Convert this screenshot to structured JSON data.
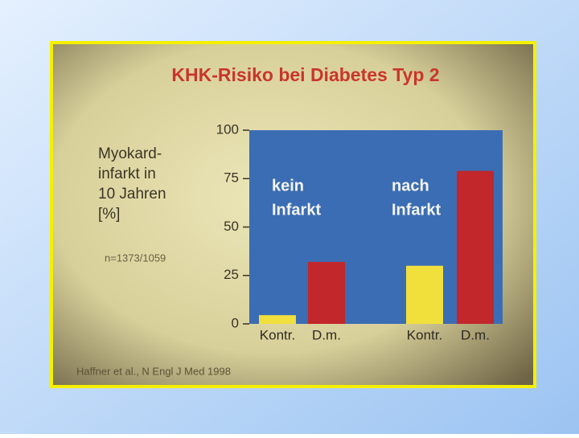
{
  "chart_data": {
    "type": "bar",
    "title": "KHK-Risiko bei Diabetes Typ 2",
    "ylabel_lines": [
      "Myokard-",
      "infarkt in",
      "10 Jahren",
      "[%]"
    ],
    "annotation": "n=1373/1059",
    "source": "Haffner et al., N Engl J Med 1998",
    "groups": [
      [
        "kein",
        "Infarkt"
      ],
      [
        "nach",
        "Infarkt"
      ]
    ],
    "categories": [
      "Kontr.",
      "D.m.",
      "Kontr.",
      "D.m."
    ],
    "values": [
      4.5,
      32,
      30,
      79
    ],
    "colors": [
      "#f1df3c",
      "#c1272b",
      "#f1df3c",
      "#c1272b"
    ],
    "plot_color": "#3b6db4",
    "ylim": [
      0,
      100
    ],
    "yticks": [
      0,
      25,
      50,
      75,
      100
    ]
  }
}
